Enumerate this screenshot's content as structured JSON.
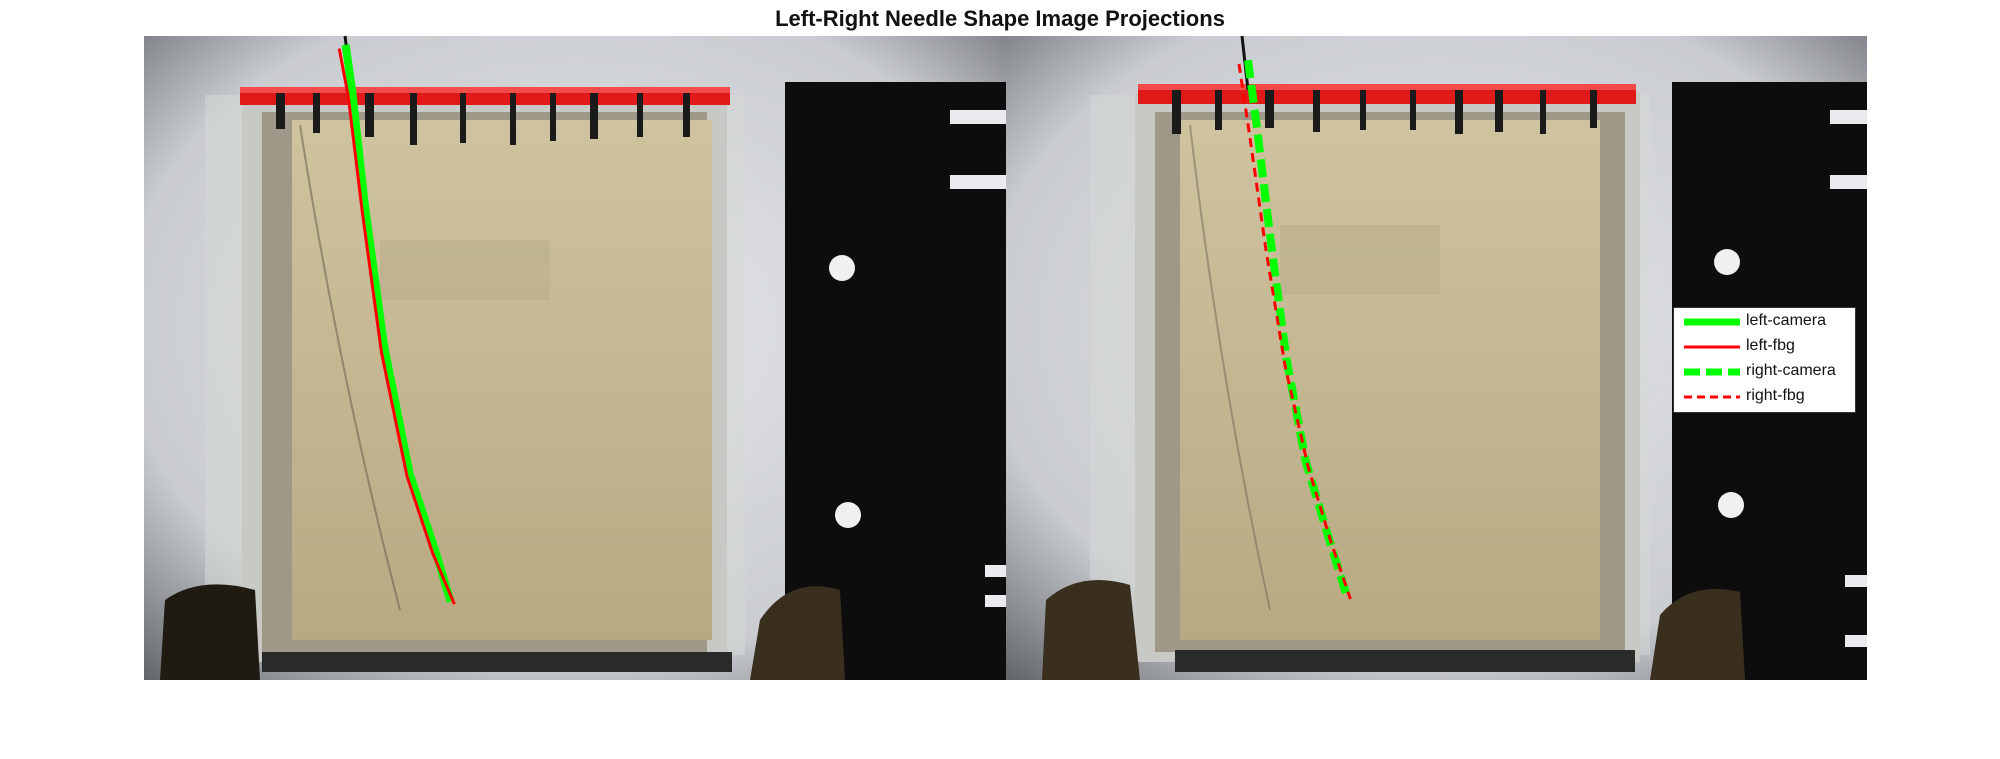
{
  "chart_data": {
    "type": "line",
    "title": "Left-Right Needle Shape Image Projections",
    "panels": [
      {
        "name": "left",
        "series": [
          {
            "name": "left-camera",
            "color": "#00ff00",
            "style": "solid-thick",
            "x": [
              270,
              275,
              285,
              300,
              320,
              340,
              352
            ],
            "y": [
              35,
              70,
              160,
              270,
              370,
              430,
              470
            ]
          },
          {
            "name": "left-fbg",
            "color": "#ff0000",
            "style": "solid",
            "x": [
              265,
              272,
              283,
              298,
              318,
              338,
              355
            ],
            "y": [
              38,
              75,
              165,
              275,
              372,
              432,
              472
            ]
          }
        ]
      },
      {
        "name": "right",
        "series": [
          {
            "name": "right-camera",
            "color": "#00ff00",
            "style": "dashed-thick",
            "x": [
              975,
              982,
              993,
              1005,
              1020,
              1038,
              1052
            ],
            "y": [
              47,
              100,
              190,
              280,
              360,
              420,
              465
            ]
          },
          {
            "name": "right-fbg",
            "color": "#ff0000",
            "style": "dashed",
            "x": [
              968,
              976,
              989,
              1004,
              1022,
              1040,
              1055
            ],
            "y": [
              50,
              104,
              195,
              286,
              365,
              424,
              468
            ]
          }
        ]
      }
    ],
    "legend": {
      "position": "right-center",
      "entries": [
        "left-camera",
        "left-fbg",
        "right-camera",
        "right-fbg"
      ]
    }
  }
}
